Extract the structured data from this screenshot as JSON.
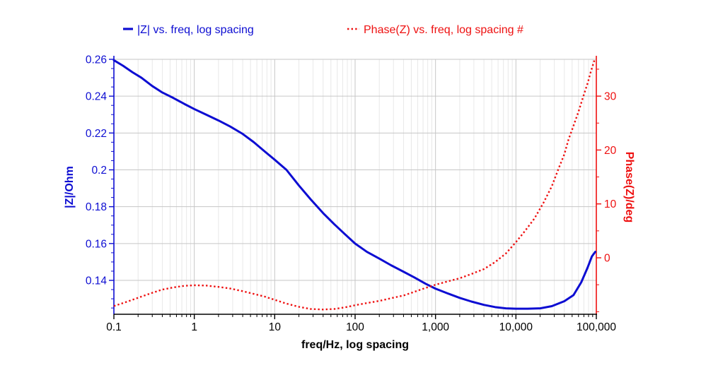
{
  "legend": {
    "series1_label": "|Z| vs. freq, log spacing",
    "series2_label": "Phase(Z) vs. freq, log spacing #"
  },
  "colors": {
    "blue": "#0d0dd2",
    "red": "#ee1010",
    "grid_major": "#c6c6c6",
    "grid_minor": "#e8e8e8",
    "axis_black": "#000000",
    "background": "#ffffff"
  },
  "chart_data": {
    "type": "line",
    "title": "",
    "x_axis": {
      "label": "freq/Hz, log spacing",
      "scale": "log",
      "min": 0.1,
      "max": 100000,
      "tick_values": [
        0.1,
        1,
        10,
        100,
        1000,
        10000,
        100000
      ],
      "tick_labels": [
        "0.1",
        "1",
        "10",
        "100",
        "1,000",
        "10,000",
        "100,000"
      ]
    },
    "y_left": {
      "label": "|Z|/Ohm",
      "unit": "Ohm",
      "min": 0.1216,
      "max": 0.26,
      "tick_values": [
        0.26,
        0.24,
        0.22,
        0.2,
        0.18,
        0.16,
        0.14
      ],
      "tick_labels": [
        "0.26",
        "0.24",
        "0.22",
        "0.2",
        "0.18",
        "0.16",
        "0.14"
      ],
      "minor_step": 0.005
    },
    "y_right": {
      "label": "Phase(Z)/deg",
      "unit": "deg",
      "min": -10.48,
      "max": 36.83,
      "tick_values": [
        30,
        20,
        10,
        0
      ],
      "tick_labels": [
        "30",
        "20",
        "10",
        "0"
      ],
      "minor_tick_values": [
        35,
        25,
        15,
        5,
        -5,
        -10
      ]
    },
    "series": [
      {
        "name": "|Z| vs. freq, log spacing",
        "axis": "left",
        "style": "solid",
        "color": "#0d0dd2",
        "points": [
          [
            0.1,
            0.2595
          ],
          [
            0.13,
            0.2565
          ],
          [
            0.17,
            0.253
          ],
          [
            0.22,
            0.25
          ],
          [
            0.3,
            0.2455
          ],
          [
            0.4,
            0.242
          ],
          [
            0.55,
            0.239
          ],
          [
            0.75,
            0.2358
          ],
          [
            1,
            0.233
          ],
          [
            1.4,
            0.23
          ],
          [
            2,
            0.2268
          ],
          [
            2.8,
            0.2235
          ],
          [
            4,
            0.2195
          ],
          [
            5.5,
            0.215
          ],
          [
            7.5,
            0.21
          ],
          [
            10,
            0.2055
          ],
          [
            14,
            0.2
          ],
          [
            20,
            0.1915
          ],
          [
            28,
            0.184
          ],
          [
            40,
            0.1765
          ],
          [
            55,
            0.1705
          ],
          [
            75,
            0.165
          ],
          [
            100,
            0.16
          ],
          [
            140,
            0.1555
          ],
          [
            200,
            0.1518
          ],
          [
            280,
            0.1482
          ],
          [
            400,
            0.1447
          ],
          [
            550,
            0.1415
          ],
          [
            750,
            0.1382
          ],
          [
            1000,
            0.1355
          ],
          [
            1400,
            0.133
          ],
          [
            2000,
            0.1305
          ],
          [
            2800,
            0.1285
          ],
          [
            4000,
            0.1267
          ],
          [
            5500,
            0.1255
          ],
          [
            7500,
            0.1248
          ],
          [
            10000,
            0.1246
          ],
          [
            14000,
            0.1246
          ],
          [
            20000,
            0.1248
          ],
          [
            28000,
            0.126
          ],
          [
            40000,
            0.1287
          ],
          [
            52000,
            0.132
          ],
          [
            65000,
            0.139
          ],
          [
            78000,
            0.147
          ],
          [
            88000,
            0.153
          ],
          [
            97000,
            0.1555
          ]
        ]
      },
      {
        "name": "Phase(Z) vs. freq, log spacing #",
        "axis": "right",
        "style": "dotted",
        "color": "#ee1010",
        "points": [
          [
            0.1,
            -8.95
          ],
          [
            0.13,
            -8.4
          ],
          [
            0.17,
            -7.8
          ],
          [
            0.22,
            -7.2
          ],
          [
            0.3,
            -6.5
          ],
          [
            0.4,
            -5.9
          ],
          [
            0.55,
            -5.5
          ],
          [
            0.75,
            -5.2
          ],
          [
            1,
            -5.1
          ],
          [
            1.4,
            -5.15
          ],
          [
            2,
            -5.4
          ],
          [
            2.8,
            -5.7
          ],
          [
            4,
            -6.2
          ],
          [
            5.5,
            -6.7
          ],
          [
            7.5,
            -7.2
          ],
          [
            10,
            -7.8
          ],
          [
            14,
            -8.5
          ],
          [
            20,
            -9.1
          ],
          [
            28,
            -9.5
          ],
          [
            40,
            -9.6
          ],
          [
            55,
            -9.5
          ],
          [
            75,
            -9.2
          ],
          [
            100,
            -8.8
          ],
          [
            140,
            -8.4
          ],
          [
            200,
            -8.0
          ],
          [
            280,
            -7.5
          ],
          [
            400,
            -7.0
          ],
          [
            550,
            -6.3
          ],
          [
            750,
            -5.6
          ],
          [
            1000,
            -5.0
          ],
          [
            1400,
            -4.4
          ],
          [
            2000,
            -3.8
          ],
          [
            2800,
            -3.0
          ],
          [
            4000,
            -2.1
          ],
          [
            5500,
            -0.8
          ],
          [
            7500,
            0.8
          ],
          [
            10000,
            2.9
          ],
          [
            13000,
            5.0
          ],
          [
            17000,
            7.3
          ],
          [
            22000,
            10.2
          ],
          [
            28000,
            13.3
          ],
          [
            34000,
            16.6
          ],
          [
            40000,
            19.2
          ],
          [
            45000,
            21.9
          ],
          [
            52000,
            24.5
          ],
          [
            60000,
            27.1
          ],
          [
            68000,
            29.7
          ],
          [
            78000,
            32.4
          ],
          [
            86000,
            34.7
          ],
          [
            95000,
            36.7
          ]
        ]
      }
    ],
    "grid": true,
    "legend_position": "top"
  }
}
